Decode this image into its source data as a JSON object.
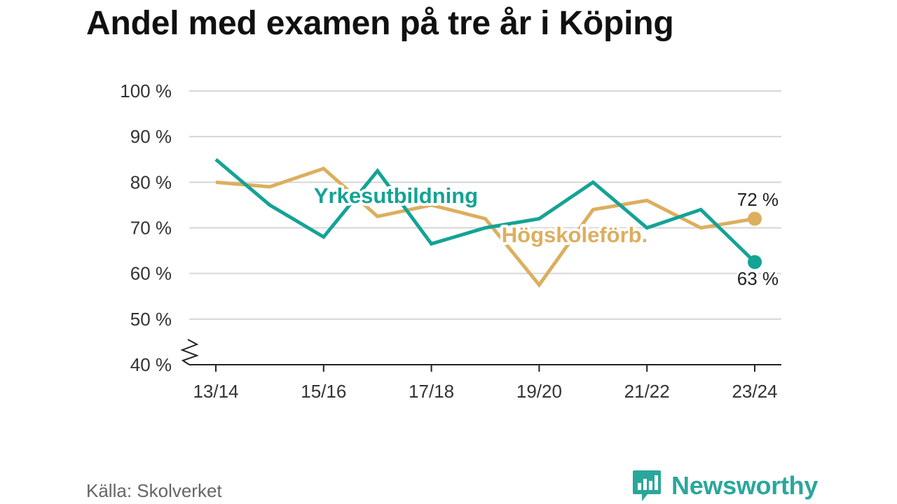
{
  "title": "Andel med examen på tre år i Köping",
  "source": "Källa: Skolverket",
  "brand": {
    "name": "Newsworthy",
    "color": "#2aa79b",
    "icon": "newsworthy-logo-icon"
  },
  "chart_data": {
    "type": "line",
    "x": [
      "13/14",
      "14/15",
      "15/16",
      "16/17",
      "17/18",
      "18/19",
      "19/20",
      "20/21",
      "21/22",
      "22/23",
      "23/24"
    ],
    "xticks": [
      "13/14",
      "15/16",
      "17/18",
      "19/20",
      "21/22",
      "23/24"
    ],
    "ylim": [
      40,
      100
    ],
    "yticks": [
      40,
      50,
      60,
      70,
      80,
      90,
      100
    ],
    "ytick_labels": [
      "40 %",
      "50 %",
      "60 %",
      "70 %",
      "80 %",
      "90 %",
      "100 %"
    ],
    "axis_break": true,
    "grid": true,
    "series": [
      {
        "name": "Högskoleförb.",
        "color": "#dcae5e",
        "values": [
          80,
          79,
          83,
          72.5,
          75,
          72,
          57.5,
          74,
          76,
          70,
          72
        ],
        "end_label": "72 %"
      },
      {
        "name": "Yrkesutbildning",
        "color": "#14a395",
        "values": [
          85,
          75,
          68,
          82.5,
          66.5,
          70,
          72,
          80,
          70,
          74,
          62.5
        ],
        "end_label": "63 %"
      }
    ]
  }
}
